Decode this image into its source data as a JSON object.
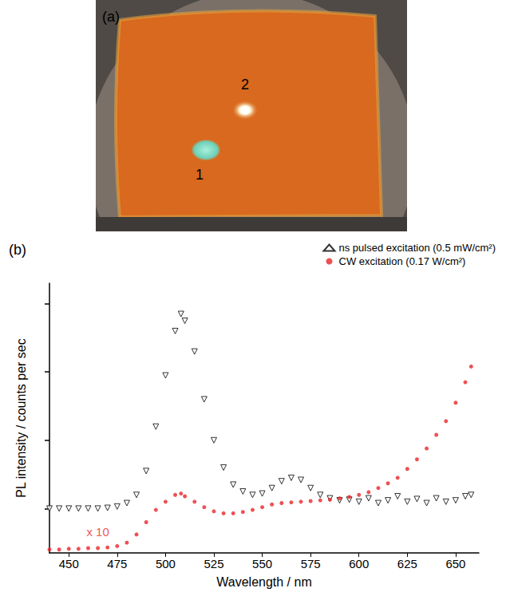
{
  "photo": {
    "label": "(a)",
    "spots": [
      {
        "label": "1"
      },
      {
        "label": "2"
      }
    ]
  },
  "chart_data": {
    "type": "scatter",
    "title": "(b)",
    "x_label": "Wavelength / nm",
    "y_label": "PL intensity / counts per sec",
    "xlim": [
      440,
      662
    ],
    "xticks": [
      450,
      475,
      500,
      525,
      550,
      575,
      600,
      625,
      650
    ],
    "ylim": [
      0.35,
      4.3
    ],
    "yticks": [
      1,
      2,
      3,
      4
    ],
    "tick_labels": "x",
    "grid": false,
    "legend": "upper right",
    "x": [
      440,
      445,
      450,
      455,
      460,
      465,
      470,
      475,
      480,
      485,
      490,
      495,
      500,
      505,
      508,
      510,
      515,
      520,
      525,
      530,
      535,
      540,
      545,
      550,
      555,
      560,
      565,
      570,
      575,
      580,
      585,
      590,
      595,
      600,
      605,
      610,
      615,
      620,
      625,
      630,
      635,
      640,
      645,
      650,
      655,
      658
    ],
    "series": [
      {
        "name": "ns pulsed excitation (0.5 mW/cm²)",
        "color": "#000000",
        "marker": "triangle_down",
        "values": [
          1.0,
          1.0,
          1.0,
          1.0,
          1.0,
          1.0,
          1.01,
          1.03,
          1.08,
          1.2,
          1.55,
          2.2,
          2.95,
          3.6,
          3.85,
          3.75,
          3.3,
          2.6,
          2.0,
          1.6,
          1.35,
          1.25,
          1.2,
          1.22,
          1.3,
          1.4,
          1.45,
          1.42,
          1.3,
          1.2,
          1.15,
          1.12,
          1.13,
          1.1,
          1.15,
          1.08,
          1.12,
          1.18,
          1.1,
          1.14,
          1.08,
          1.15,
          1.1,
          1.12,
          1.18,
          1.2
        ]
      },
      {
        "name": "CW excitation (0.17 W/cm²)",
        "color": "#e8262a",
        "marker": "circle",
        "values": [
          0.4,
          0.4,
          0.41,
          0.41,
          0.42,
          0.42,
          0.43,
          0.45,
          0.5,
          0.62,
          0.8,
          0.98,
          1.1,
          1.2,
          1.22,
          1.18,
          1.1,
          1.02,
          0.96,
          0.93,
          0.93,
          0.95,
          0.98,
          1.02,
          1.06,
          1.08,
          1.09,
          1.1,
          1.11,
          1.12,
          1.13,
          1.15,
          1.17,
          1.2,
          1.24,
          1.3,
          1.37,
          1.45,
          1.58,
          1.72,
          1.88,
          2.08,
          2.28,
          2.55,
          2.85,
          3.08
        ]
      }
    ],
    "annotations": [
      {
        "text": "x 10",
        "x": 465,
        "y": 0.66,
        "color": "#e8262a"
      }
    ]
  }
}
